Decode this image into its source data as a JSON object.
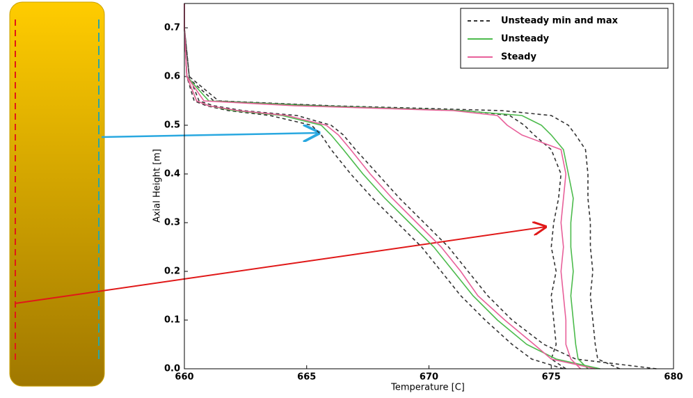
{
  "chart_data": {
    "type": "line",
    "x_label": "Temperature [C]",
    "y_label": "Axial Height [m]",
    "xlim": [
      660,
      680
    ],
    "ylim": [
      0,
      0.75
    ],
    "xticks": [
      660,
      665,
      670,
      675,
      680
    ],
    "yticks": [
      {
        "value": 0,
        "label": "0.0"
      },
      {
        "value": 0.1,
        "label": "0.1"
      },
      {
        "value": 0.2,
        "label": "0.2"
      },
      {
        "value": 0.3,
        "label": "0.3"
      },
      {
        "value": 0.4,
        "label": "0.4"
      },
      {
        "value": 0.5,
        "label": "0.5"
      },
      {
        "value": 0.6,
        "label": "0.6"
      },
      {
        "value": 0.7,
        "label": "0.7"
      }
    ],
    "legend": "upper right",
    "y": [
      0,
      0.02,
      0.05,
      0.1,
      0.15,
      0.2,
      0.25,
      0.3,
      0.35,
      0.4,
      0.45,
      0.48,
      0.5,
      0.52,
      0.53,
      0.54,
      0.55,
      0.6,
      0.7,
      0.75
    ],
    "series": [
      {
        "name": "Unsteady min and max",
        "color": "#333333",
        "dashed": true,
        "lines": [
          [
            675.5,
            674.2,
            673.4,
            672.3,
            671.3,
            670.5,
            669.7,
            668.7,
            667.7,
            666.8,
            666.0,
            665.6,
            665.2,
            663.5,
            661.8,
            660.9,
            660.4,
            660.1,
            660.0,
            660.0
          ],
          [
            679.3,
            676.0,
            674.7,
            673.4,
            672.4,
            671.6,
            670.8,
            669.8,
            668.8,
            667.9,
            667.0,
            666.5,
            666.0,
            664.6,
            662.4,
            661.2,
            660.6,
            660.2,
            660.0,
            660.0
          ],
          [
            675.6,
            675.0,
            675.2,
            675.1,
            675.0,
            675.2,
            675.0,
            675.1,
            675.3,
            675.4,
            675.0,
            674.3,
            673.9,
            673.3,
            671.5,
            665.5,
            661.2,
            660.1,
            660.0,
            660.0
          ],
          [
            677.8,
            676.9,
            676.8,
            676.7,
            676.6,
            676.7,
            676.6,
            676.6,
            676.5,
            676.5,
            676.4,
            676.0,
            675.7,
            675.0,
            673.0,
            666.0,
            661.4,
            660.2,
            660.0,
            660.0
          ]
        ]
      },
      {
        "name": "Unsteady",
        "color": "#4cbb4c",
        "dashed": false,
        "lines": [
          [
            677.0,
            675.2,
            674.0,
            672.8,
            671.8,
            671.0,
            670.2,
            669.2,
            668.2,
            667.3,
            666.5,
            666.0,
            665.6,
            664.0,
            662.0,
            661.0,
            660.5,
            660.1,
            660.0,
            660.0
          ],
          [
            676.5,
            676.1,
            676.0,
            675.9,
            675.8,
            675.9,
            675.8,
            675.8,
            675.9,
            675.7,
            675.5,
            675.0,
            674.6,
            673.8,
            671.3,
            665.2,
            661.0,
            660.1,
            660.0,
            660.0
          ]
        ]
      },
      {
        "name": "Steady",
        "color": "#e8609a",
        "dashed": false,
        "lines": [
          [
            676.8,
            675.0,
            674.3,
            673.1,
            672.0,
            671.3,
            670.5,
            669.5,
            668.5,
            667.6,
            666.8,
            666.3,
            665.8,
            664.2,
            662.2,
            661.0,
            660.5,
            660.1,
            660.0,
            660.0
          ],
          [
            676.2,
            675.8,
            675.6,
            675.6,
            675.5,
            675.4,
            675.5,
            675.4,
            675.5,
            675.6,
            675.4,
            673.8,
            673.2,
            672.8,
            671.0,
            664.5,
            660.8,
            660.1,
            660.0,
            660.0
          ]
        ]
      }
    ]
  }
}
